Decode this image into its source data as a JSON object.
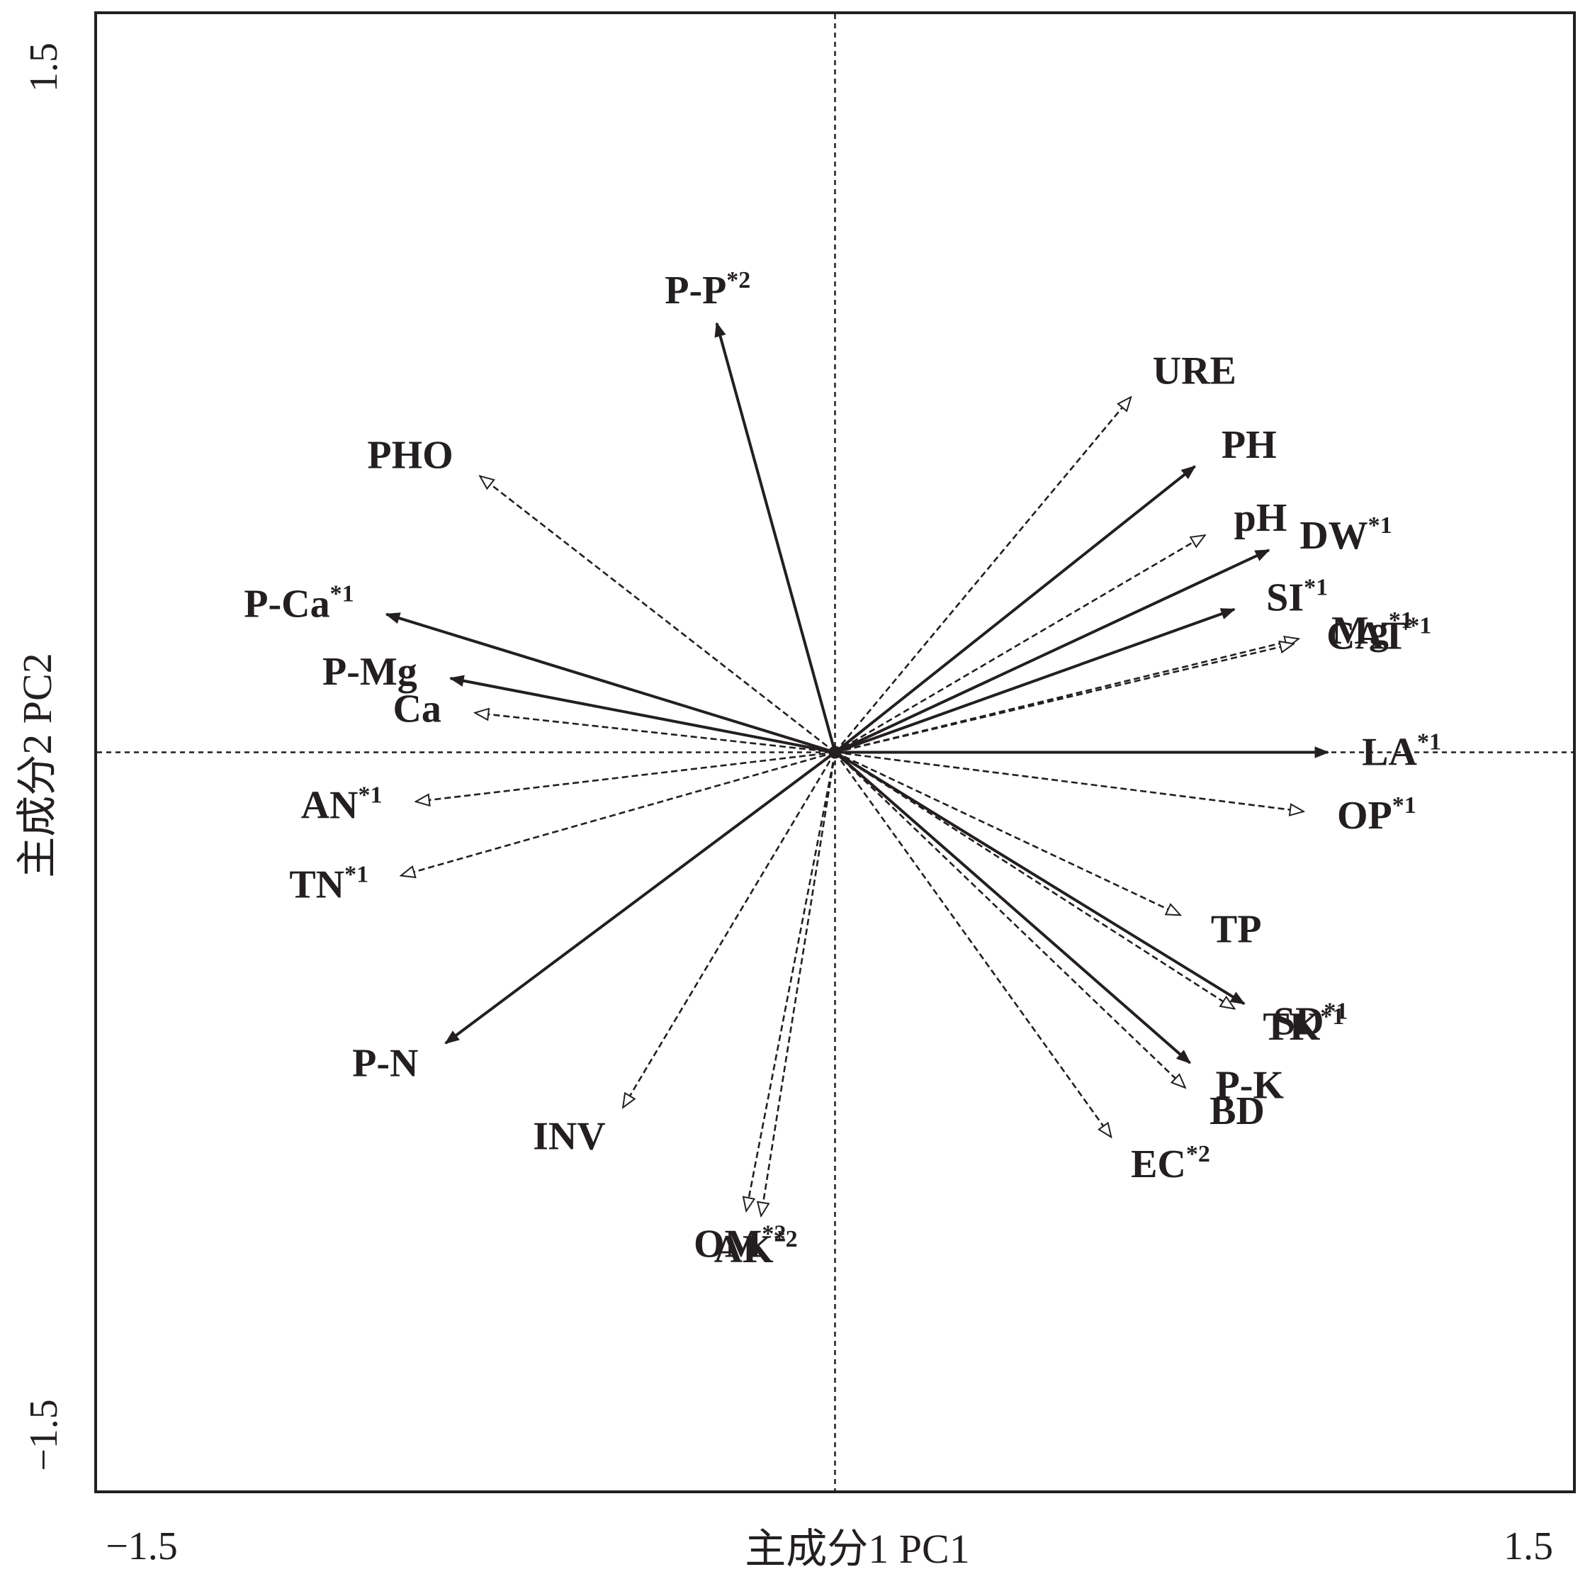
{
  "chart_data": {
    "type": "scatter",
    "subtype": "rda-biplot",
    "xlabel": "主成分1 PC1",
    "ylabel": "主成分2 PC2",
    "xlim": [
      -1.5,
      1.5
    ],
    "ylim": [
      -1.5,
      1.5
    ],
    "x_tick_labels": [
      "−1.5",
      "1.5"
    ],
    "y_tick_labels": [
      "−1.5",
      "1.5"
    ],
    "grid": false,
    "reference_lines": "dashed lines at x=0 and y=0",
    "legend": "none",
    "colors": {
      "ink": "#231f20",
      "background": "#ffffff"
    },
    "vectors": [
      {
        "label": "P-P",
        "sup": "*2",
        "style": "solid-filled",
        "x": -0.24,
        "y": 0.87
      },
      {
        "label": "URE",
        "sup": "",
        "style": "dashed-hollow",
        "x": 0.6,
        "y": 0.72
      },
      {
        "label": "PH",
        "sup": "",
        "style": "solid-filled",
        "x": 0.73,
        "y": 0.58
      },
      {
        "label": "pH",
        "sup": "",
        "style": "dashed-hollow",
        "x": 0.75,
        "y": 0.44
      },
      {
        "label": "DW",
        "sup": "*1",
        "style": "solid-filled",
        "x": 0.88,
        "y": 0.41
      },
      {
        "label": "SI",
        "sup": "*1",
        "style": "solid-filled",
        "x": 0.81,
        "y": 0.29
      },
      {
        "label": "Mg",
        "sup": "*1",
        "style": "dashed-hollow",
        "x": 0.94,
        "y": 0.23
      },
      {
        "label": "CAT",
        "sup": "*1",
        "style": "dashed-hollow",
        "x": 0.93,
        "y": 0.22
      },
      {
        "label": "LA",
        "sup": "*1",
        "style": "solid-filled",
        "x": 1.0,
        "y": 0.0
      },
      {
        "label": "OP",
        "sup": "*1",
        "style": "dashed-hollow",
        "x": 0.95,
        "y": -0.12
      },
      {
        "label": "TP",
        "sup": "",
        "style": "dashed-hollow",
        "x": 0.7,
        "y": -0.33
      },
      {
        "label": "SD",
        "sup": "*1",
        "style": "solid-filled",
        "x": 0.83,
        "y": -0.51
      },
      {
        "label": "TK",
        "sup": "*1",
        "style": "dashed-hollow",
        "x": 0.81,
        "y": -0.52
      },
      {
        "label": "P-K",
        "sup": "",
        "style": "solid-filled",
        "x": 0.72,
        "y": -0.63
      },
      {
        "label": "BD",
        "sup": "",
        "style": "dashed-hollow",
        "x": 0.71,
        "y": -0.68
      },
      {
        "label": "EC",
        "sup": "*2",
        "style": "dashed-hollow",
        "x": 0.56,
        "y": -0.78
      },
      {
        "label": "AK",
        "sup": "*2",
        "style": "dashed-hollow",
        "x": -0.15,
        "y": -0.94
      },
      {
        "label": "OM",
        "sup": "*2",
        "style": "dashed-hollow",
        "x": -0.18,
        "y": -0.93
      },
      {
        "label": "INV",
        "sup": "",
        "style": "dashed-hollow",
        "x": -0.43,
        "y": -0.72
      },
      {
        "label": "P-N",
        "sup": "",
        "style": "solid-filled",
        "x": -0.79,
        "y": -0.59
      },
      {
        "label": "TN",
        "sup": "*1",
        "style": "dashed-hollow",
        "x": -0.88,
        "y": -0.25
      },
      {
        "label": "AN",
        "sup": "*1",
        "style": "dashed-hollow",
        "x": -0.85,
        "y": -0.1
      },
      {
        "label": "Ca",
        "sup": "",
        "style": "dashed-hollow",
        "x": -0.73,
        "y": 0.08
      },
      {
        "label": "P-Mg",
        "sup": "",
        "style": "solid-filled",
        "x": -0.78,
        "y": 0.15
      },
      {
        "label": "P-Ca",
        "sup": "*1",
        "style": "solid-filled",
        "x": -0.91,
        "y": 0.28
      },
      {
        "label": "PHO",
        "sup": "",
        "style": "dashed-hollow",
        "x": -0.72,
        "y": 0.56
      }
    ]
  }
}
